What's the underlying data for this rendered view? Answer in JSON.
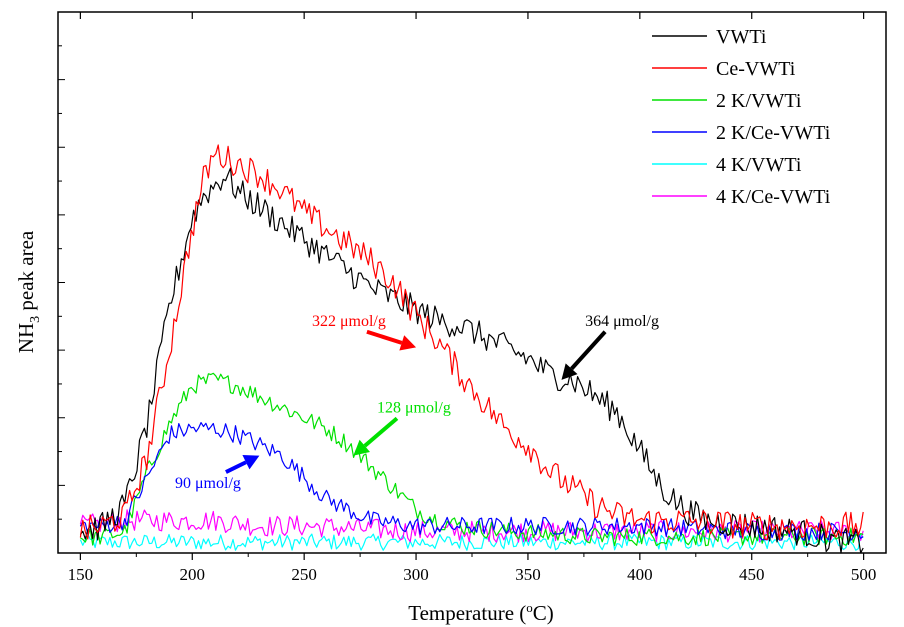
{
  "chart_data": {
    "type": "line",
    "xlabel": {
      "main": "Temperature (",
      "sup": "o",
      "tail": "C)"
    },
    "ylabel": {
      "main": "NH",
      "sub": "3",
      "tail": " peak area"
    },
    "xlim": [
      140,
      510
    ],
    "ylim": [
      0,
      100
    ],
    "x_ticks": [
      150,
      200,
      250,
      300,
      350,
      400,
      450,
      500
    ],
    "x_tick_labels": [
      "150",
      "200",
      "250",
      "300",
      "350",
      "400",
      "450",
      "500"
    ],
    "y_tick_labels_shown": false,
    "grid": false,
    "legend_position": "top-right",
    "series": [
      {
        "name": "VWTi",
        "color": "#000000",
        "points": [
          [
            150,
            4
          ],
          [
            160,
            5
          ],
          [
            170,
            9
          ],
          [
            180,
            24
          ],
          [
            190,
            46
          ],
          [
            200,
            62
          ],
          [
            205,
            66
          ],
          [
            210,
            68
          ],
          [
            215,
            70
          ],
          [
            220,
            67
          ],
          [
            230,
            64
          ],
          [
            240,
            61
          ],
          [
            250,
            58
          ],
          [
            260,
            55
          ],
          [
            270,
            52
          ],
          [
            280,
            49
          ],
          [
            290,
            47
          ],
          [
            300,
            45
          ],
          [
            310,
            43
          ],
          [
            320,
            42
          ],
          [
            330,
            40
          ],
          [
            340,
            38
          ],
          [
            350,
            36
          ],
          [
            360,
            33
          ],
          [
            370,
            32
          ],
          [
            380,
            29
          ],
          [
            390,
            26
          ],
          [
            400,
            19
          ],
          [
            410,
            12
          ],
          [
            420,
            8
          ],
          [
            430,
            6
          ],
          [
            450,
            5
          ],
          [
            470,
            4
          ],
          [
            480,
            3
          ],
          [
            490,
            2
          ],
          [
            500,
            2
          ]
        ],
        "noise": 2.6
      },
      {
        "name": "Ce-VWTi",
        "color": "#ff0000",
        "points": [
          [
            150,
            4
          ],
          [
            160,
            5
          ],
          [
            170,
            7
          ],
          [
            180,
            18
          ],
          [
            190,
            38
          ],
          [
            200,
            60
          ],
          [
            205,
            69
          ],
          [
            210,
            74
          ],
          [
            215,
            73
          ],
          [
            220,
            72
          ],
          [
            230,
            70
          ],
          [
            240,
            67
          ],
          [
            250,
            63
          ],
          [
            260,
            60
          ],
          [
            270,
            57
          ],
          [
            280,
            54
          ],
          [
            290,
            50
          ],
          [
            300,
            44
          ],
          [
            310,
            39
          ],
          [
            320,
            33
          ],
          [
            330,
            28
          ],
          [
            340,
            23
          ],
          [
            350,
            20
          ],
          [
            360,
            15
          ],
          [
            370,
            12
          ],
          [
            380,
            9
          ],
          [
            390,
            7
          ],
          [
            400,
            6
          ],
          [
            420,
            6
          ],
          [
            450,
            5
          ],
          [
            480,
            5
          ],
          [
            500,
            5
          ]
        ],
        "noise": 2.6
      },
      {
        "name": "2 K/VWTi",
        "color": "#00e000",
        "points": [
          [
            150,
            3
          ],
          [
            160,
            3
          ],
          [
            170,
            4
          ],
          [
            180,
            15
          ],
          [
            190,
            24
          ],
          [
            200,
            31
          ],
          [
            210,
            32
          ],
          [
            220,
            31
          ],
          [
            230,
            29
          ],
          [
            240,
            27
          ],
          [
            250,
            25
          ],
          [
            260,
            23
          ],
          [
            270,
            20
          ],
          [
            280,
            16
          ],
          [
            290,
            12
          ],
          [
            300,
            8
          ],
          [
            310,
            6
          ],
          [
            320,
            5
          ],
          [
            340,
            4
          ],
          [
            380,
            3
          ],
          [
            420,
            3
          ],
          [
            460,
            3
          ],
          [
            500,
            3
          ]
        ],
        "noise": 1.7
      },
      {
        "name": "2 K/Ce-VWTi",
        "color": "#0000ff",
        "points": [
          [
            150,
            5
          ],
          [
            160,
            5
          ],
          [
            170,
            6
          ],
          [
            180,
            14
          ],
          [
            190,
            22
          ],
          [
            200,
            23
          ],
          [
            210,
            23
          ],
          [
            220,
            22
          ],
          [
            230,
            20
          ],
          [
            240,
            18
          ],
          [
            250,
            14
          ],
          [
            260,
            10
          ],
          [
            270,
            8
          ],
          [
            280,
            6
          ],
          [
            300,
            5
          ],
          [
            350,
            5
          ],
          [
            400,
            5
          ],
          [
            450,
            4
          ],
          [
            500,
            4
          ]
        ],
        "noise": 1.7
      },
      {
        "name": "4 K/VWTi",
        "color": "#00ffff",
        "points": [
          [
            150,
            2
          ],
          [
            200,
            2
          ],
          [
            250,
            2
          ],
          [
            300,
            2
          ],
          [
            350,
            2
          ],
          [
            400,
            2
          ],
          [
            450,
            2
          ],
          [
            500,
            2
          ]
        ],
        "noise": 1.5
      },
      {
        "name": "4 K/Ce-VWTi",
        "color": "#ff00ff",
        "points": [
          [
            150,
            5
          ],
          [
            170,
            6
          ],
          [
            190,
            6
          ],
          [
            210,
            6
          ],
          [
            230,
            5
          ],
          [
            250,
            5
          ],
          [
            300,
            4
          ],
          [
            350,
            4
          ],
          [
            400,
            4
          ],
          [
            450,
            4
          ],
          [
            500,
            4
          ]
        ],
        "noise": 2.0
      }
    ],
    "annotations": [
      {
        "text": "364 μmol/g",
        "color": "#000000",
        "arrow_to": [
          365,
          32
        ],
        "label_at": [
          380,
          42
        ]
      },
      {
        "text": "322 μmol/g",
        "color": "#ff0000",
        "arrow_to": [
          300,
          38
        ],
        "label_at": [
          270,
          42
        ]
      },
      {
        "text": "128 μmol/g",
        "color": "#00e000",
        "arrow_to": [
          272,
          18
        ],
        "label_at": [
          287,
          26
        ]
      },
      {
        "text": "90 μmol/g",
        "color": "#0000ff",
        "arrow_to": [
          230,
          18
        ],
        "label_at": [
          207,
          12
        ]
      }
    ]
  }
}
